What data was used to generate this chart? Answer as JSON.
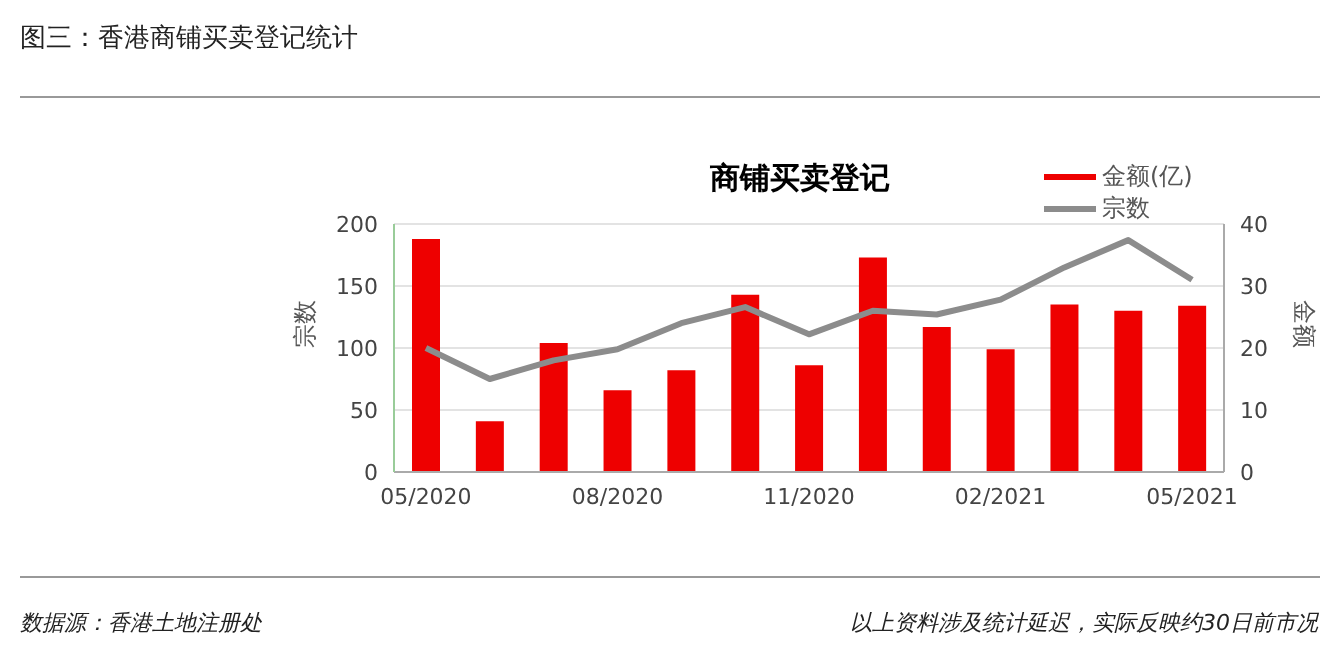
{
  "chart_data": {
    "type": "bar",
    "title": "图三：香港商铺买卖登记统计",
    "subtitle": "商铺买卖登记",
    "ylabel": "宗数",
    "y2label": "金额",
    "categories": [
      "05/2020",
      null,
      null,
      "08/2020",
      null,
      null,
      "11/2020",
      null,
      null,
      "02/2021",
      null,
      null,
      "05/2021"
    ],
    "series": [
      {
        "name": "金额(亿)",
        "axis": "y2",
        "color": "#ee0000",
        "values": [
          37.6,
          8.2,
          20.8,
          13.2,
          16.4,
          28.6,
          17.2,
          34.6,
          23.4,
          19.8,
          27,
          26,
          26.8
        ]
      },
      {
        "name": "宗数",
        "type": "line",
        "axis": "y",
        "color": "#8c8c8c",
        "values": [
          100,
          75,
          90,
          99,
          120,
          133,
          111,
          130,
          127,
          139,
          165,
          187,
          155
        ]
      }
    ],
    "ylim": [
      0,
      200
    ],
    "yticks": [
      0,
      50,
      100,
      150,
      200
    ],
    "y2lim": [
      0,
      40
    ],
    "y2ticks": [
      0,
      10,
      20,
      30,
      40
    ],
    "grid": "y",
    "legend": "top right",
    "annotations": [
      "数据源：香港土地注册处",
      "以上资料涉及统计延迟，实际反映约30日前市况"
    ]
  }
}
